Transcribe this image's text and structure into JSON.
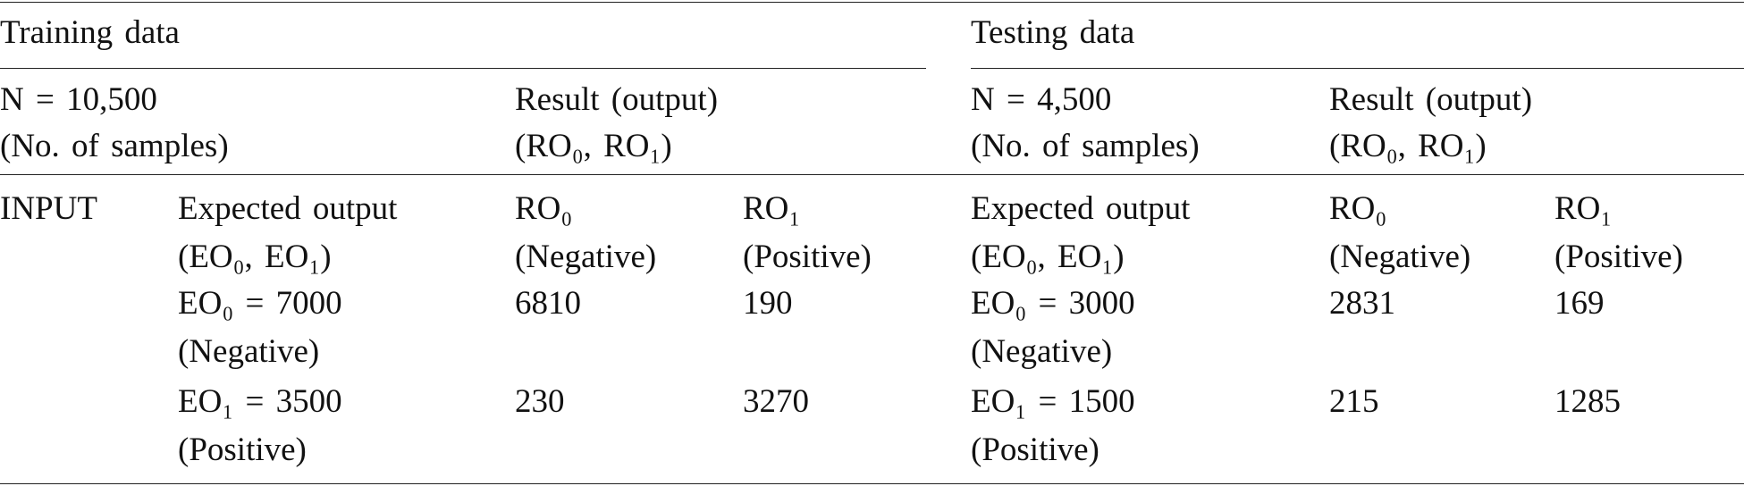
{
  "header": {
    "training": "Training data",
    "testing": "Testing data"
  },
  "training": {
    "n": "N = 10,500",
    "n_note": "(No. of samples)",
    "result": "Result (output)",
    "result_note": "(RO₀, RO₁)"
  },
  "testing": {
    "n": "N = 4,500",
    "n_note": "(No. of samples)",
    "result": "Result (output)",
    "result_note": "(RO₀, RO₁)"
  },
  "input_label": "INPUT",
  "table": {
    "rows": [
      [
        [
          "Expected output",
          "(EO₀, EO₁)"
        ],
        [
          "RO₀",
          "(Negative)"
        ],
        [
          "RO₁",
          "(Positive)"
        ],
        [
          "Expected output",
          "(EO₀, EO₁)"
        ],
        [
          "RO₀",
          "(Negative)"
        ],
        [
          "RO₁",
          "(Positive)"
        ]
      ],
      [
        [
          "EO₀ = 7000",
          "(Negative)"
        ],
        [
          6810
        ],
        [
          190
        ],
        [
          "EO₀ = 3000",
          "(Negative)"
        ],
        [
          2831
        ],
        [
          169
        ]
      ],
      [
        [
          "EO₁ = 3500",
          "(Positive)"
        ],
        [
          230
        ],
        [
          3270
        ],
        [
          "EO₁ = 1500",
          "(Positive)"
        ],
        [
          215
        ],
        [
          1285
        ]
      ]
    ]
  }
}
